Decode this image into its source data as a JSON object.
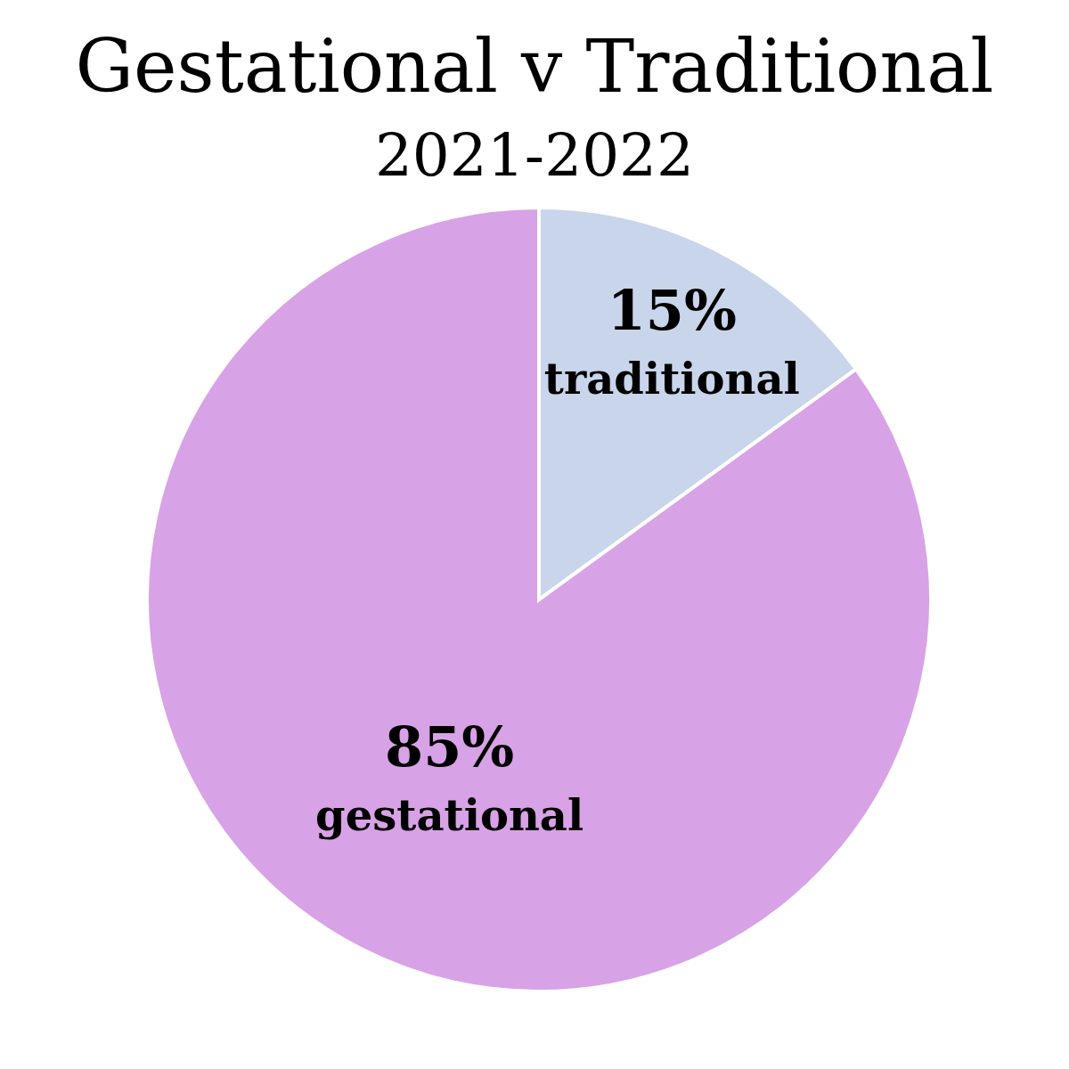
{
  "chart_data": {
    "type": "pie",
    "title": "Gestational v Traditional",
    "subtitle": "2021-2022",
    "categories": [
      "traditional",
      "gestational"
    ],
    "values": [
      15,
      85
    ],
    "colors": [
      "#c8d5ea",
      "#d8a2e6"
    ],
    "value_labels": [
      "15%",
      "85%"
    ],
    "legend": false
  }
}
